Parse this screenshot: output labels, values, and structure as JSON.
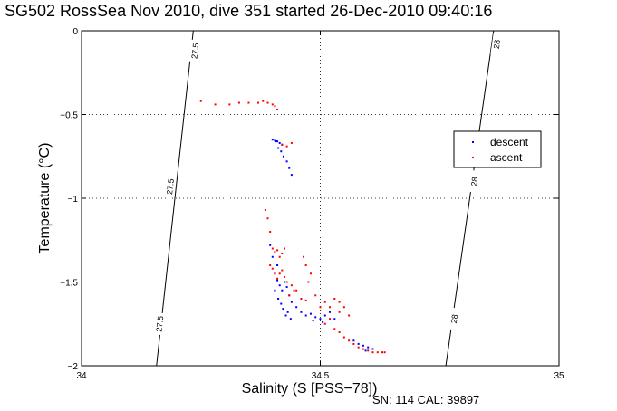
{
  "chart_data": {
    "type": "scatter",
    "title": "SG502 RossSea Nov 2010, dive 351 started 26-Dec-2010 09:40:16",
    "xlabel": "Salinity (S [PSS−78])",
    "ylabel": "Temperature (°C)",
    "footnote": "SN: 114  CAL: 39897",
    "xlim": [
      34,
      35
    ],
    "ylim": [
      -2,
      0
    ],
    "x_ticks": [
      34,
      34.5,
      35
    ],
    "x_tick_labels": [
      "34",
      "34.5",
      "35"
    ],
    "y_ticks": [
      0,
      -0.5,
      -1,
      -1.5,
      -2
    ],
    "y_tick_labels": [
      "0",
      "−0.5",
      "−1",
      "−1.5",
      "−2"
    ],
    "grid": true,
    "legend_position": "right",
    "series": [
      {
        "name": "descent",
        "color": "#0000ff",
        "marker": "dot",
        "points": [
          [
            34.4,
            -0.65
          ],
          [
            34.405,
            -0.655
          ],
          [
            34.41,
            -0.66
          ],
          [
            34.415,
            -0.67
          ],
          [
            34.42,
            -0.68
          ],
          [
            34.412,
            -0.7
          ],
          [
            34.418,
            -0.72
          ],
          [
            34.423,
            -0.75
          ],
          [
            34.43,
            -0.78
          ],
          [
            34.435,
            -0.82
          ],
          [
            34.44,
            -0.86
          ],
          [
            34.408,
            -0.66
          ],
          [
            34.395,
            -1.28
          ],
          [
            34.4,
            -1.35
          ],
          [
            34.41,
            -1.4
          ],
          [
            34.405,
            -1.45
          ],
          [
            34.41,
            -1.49
          ],
          [
            34.415,
            -1.52
          ],
          [
            34.42,
            -1.55
          ],
          [
            34.425,
            -1.5
          ],
          [
            34.43,
            -1.53
          ],
          [
            34.435,
            -1.58
          ],
          [
            34.44,
            -1.62
          ],
          [
            34.412,
            -1.6
          ],
          [
            34.418,
            -1.63
          ],
          [
            34.422,
            -1.66
          ],
          [
            34.428,
            -1.7
          ],
          [
            34.432,
            -1.68
          ],
          [
            34.438,
            -1.72
          ],
          [
            34.405,
            -1.55
          ],
          [
            34.45,
            -1.65
          ],
          [
            34.46,
            -1.68
          ],
          [
            34.47,
            -1.7
          ],
          [
            34.48,
            -1.69
          ],
          [
            34.49,
            -1.71
          ],
          [
            34.5,
            -1.72
          ],
          [
            34.51,
            -1.7
          ],
          [
            34.52,
            -1.68
          ],
          [
            34.53,
            -1.72
          ],
          [
            34.485,
            -1.73
          ],
          [
            34.505,
            -1.74
          ],
          [
            34.57,
            -1.85
          ],
          [
            34.58,
            -1.87
          ],
          [
            34.59,
            -1.88
          ],
          [
            34.6,
            -1.89
          ],
          [
            34.61,
            -1.9
          ],
          [
            34.595,
            -1.91
          ]
        ]
      },
      {
        "name": "ascent",
        "color": "#ff0000",
        "marker": "dot",
        "points": [
          [
            34.25,
            -0.42
          ],
          [
            34.28,
            -0.44
          ],
          [
            34.31,
            -0.44
          ],
          [
            34.33,
            -0.43
          ],
          [
            34.35,
            -0.43
          ],
          [
            34.37,
            -0.43
          ],
          [
            34.38,
            -0.42
          ],
          [
            34.39,
            -0.43
          ],
          [
            34.4,
            -0.44
          ],
          [
            34.405,
            -0.45
          ],
          [
            34.41,
            -0.47
          ],
          [
            34.42,
            -0.68
          ],
          [
            34.43,
            -0.69
          ],
          [
            34.44,
            -0.67
          ],
          [
            34.385,
            -1.07
          ],
          [
            34.39,
            -1.12
          ],
          [
            34.395,
            -1.2
          ],
          [
            34.4,
            -1.3
          ],
          [
            34.405,
            -1.32
          ],
          [
            34.41,
            -1.31
          ],
          [
            34.42,
            -1.33
          ],
          [
            34.425,
            -1.3
          ],
          [
            34.415,
            -1.35
          ],
          [
            34.395,
            -1.4
          ],
          [
            34.4,
            -1.42
          ],
          [
            34.405,
            -1.45
          ],
          [
            34.41,
            -1.48
          ],
          [
            34.415,
            -1.45
          ],
          [
            34.42,
            -1.43
          ],
          [
            34.425,
            -1.47
          ],
          [
            34.43,
            -1.5
          ],
          [
            34.44,
            -1.52
          ],
          [
            34.445,
            -1.55
          ],
          [
            34.435,
            -1.58
          ],
          [
            34.45,
            -1.55
          ],
          [
            34.46,
            -1.6
          ],
          [
            34.47,
            -1.61
          ],
          [
            34.465,
            -1.35
          ],
          [
            34.47,
            -1.4
          ],
          [
            34.48,
            -1.45
          ],
          [
            34.475,
            -1.5
          ],
          [
            34.49,
            -1.58
          ],
          [
            34.5,
            -1.65
          ],
          [
            34.51,
            -1.62
          ],
          [
            34.52,
            -1.65
          ],
          [
            34.53,
            -1.6
          ],
          [
            34.54,
            -1.62
          ],
          [
            34.55,
            -1.65
          ],
          [
            34.56,
            -1.7
          ],
          [
            34.54,
            -1.68
          ],
          [
            34.52,
            -1.72
          ],
          [
            34.51,
            -1.75
          ],
          [
            34.53,
            -1.78
          ],
          [
            34.54,
            -1.8
          ],
          [
            34.55,
            -1.83
          ],
          [
            34.56,
            -1.85
          ],
          [
            34.57,
            -1.87
          ],
          [
            34.58,
            -1.89
          ],
          [
            34.59,
            -1.9
          ],
          [
            34.6,
            -1.91
          ],
          [
            34.61,
            -1.92
          ],
          [
            34.62,
            -1.92
          ],
          [
            34.63,
            -1.92
          ],
          [
            34.635,
            -1.92
          ]
        ]
      }
    ],
    "isopycnals": [
      {
        "label": "27.5",
        "points": [
          [
            34.157,
            -2.0
          ],
          [
            34.234,
            0.0
          ]
        ],
        "label_points": [
          [
            34.237,
            -0.12
          ],
          [
            34.185,
            -0.93
          ],
          [
            34.163,
            -1.75
          ]
        ]
      },
      {
        "label": "28",
        "points": [
          [
            34.763,
            -2.0
          ],
          [
            34.863,
            0.0
          ]
        ],
        "label_points": [
          [
            34.869,
            -0.08
          ],
          [
            34.822,
            -0.9
          ],
          [
            34.78,
            -1.72
          ]
        ]
      }
    ]
  }
}
